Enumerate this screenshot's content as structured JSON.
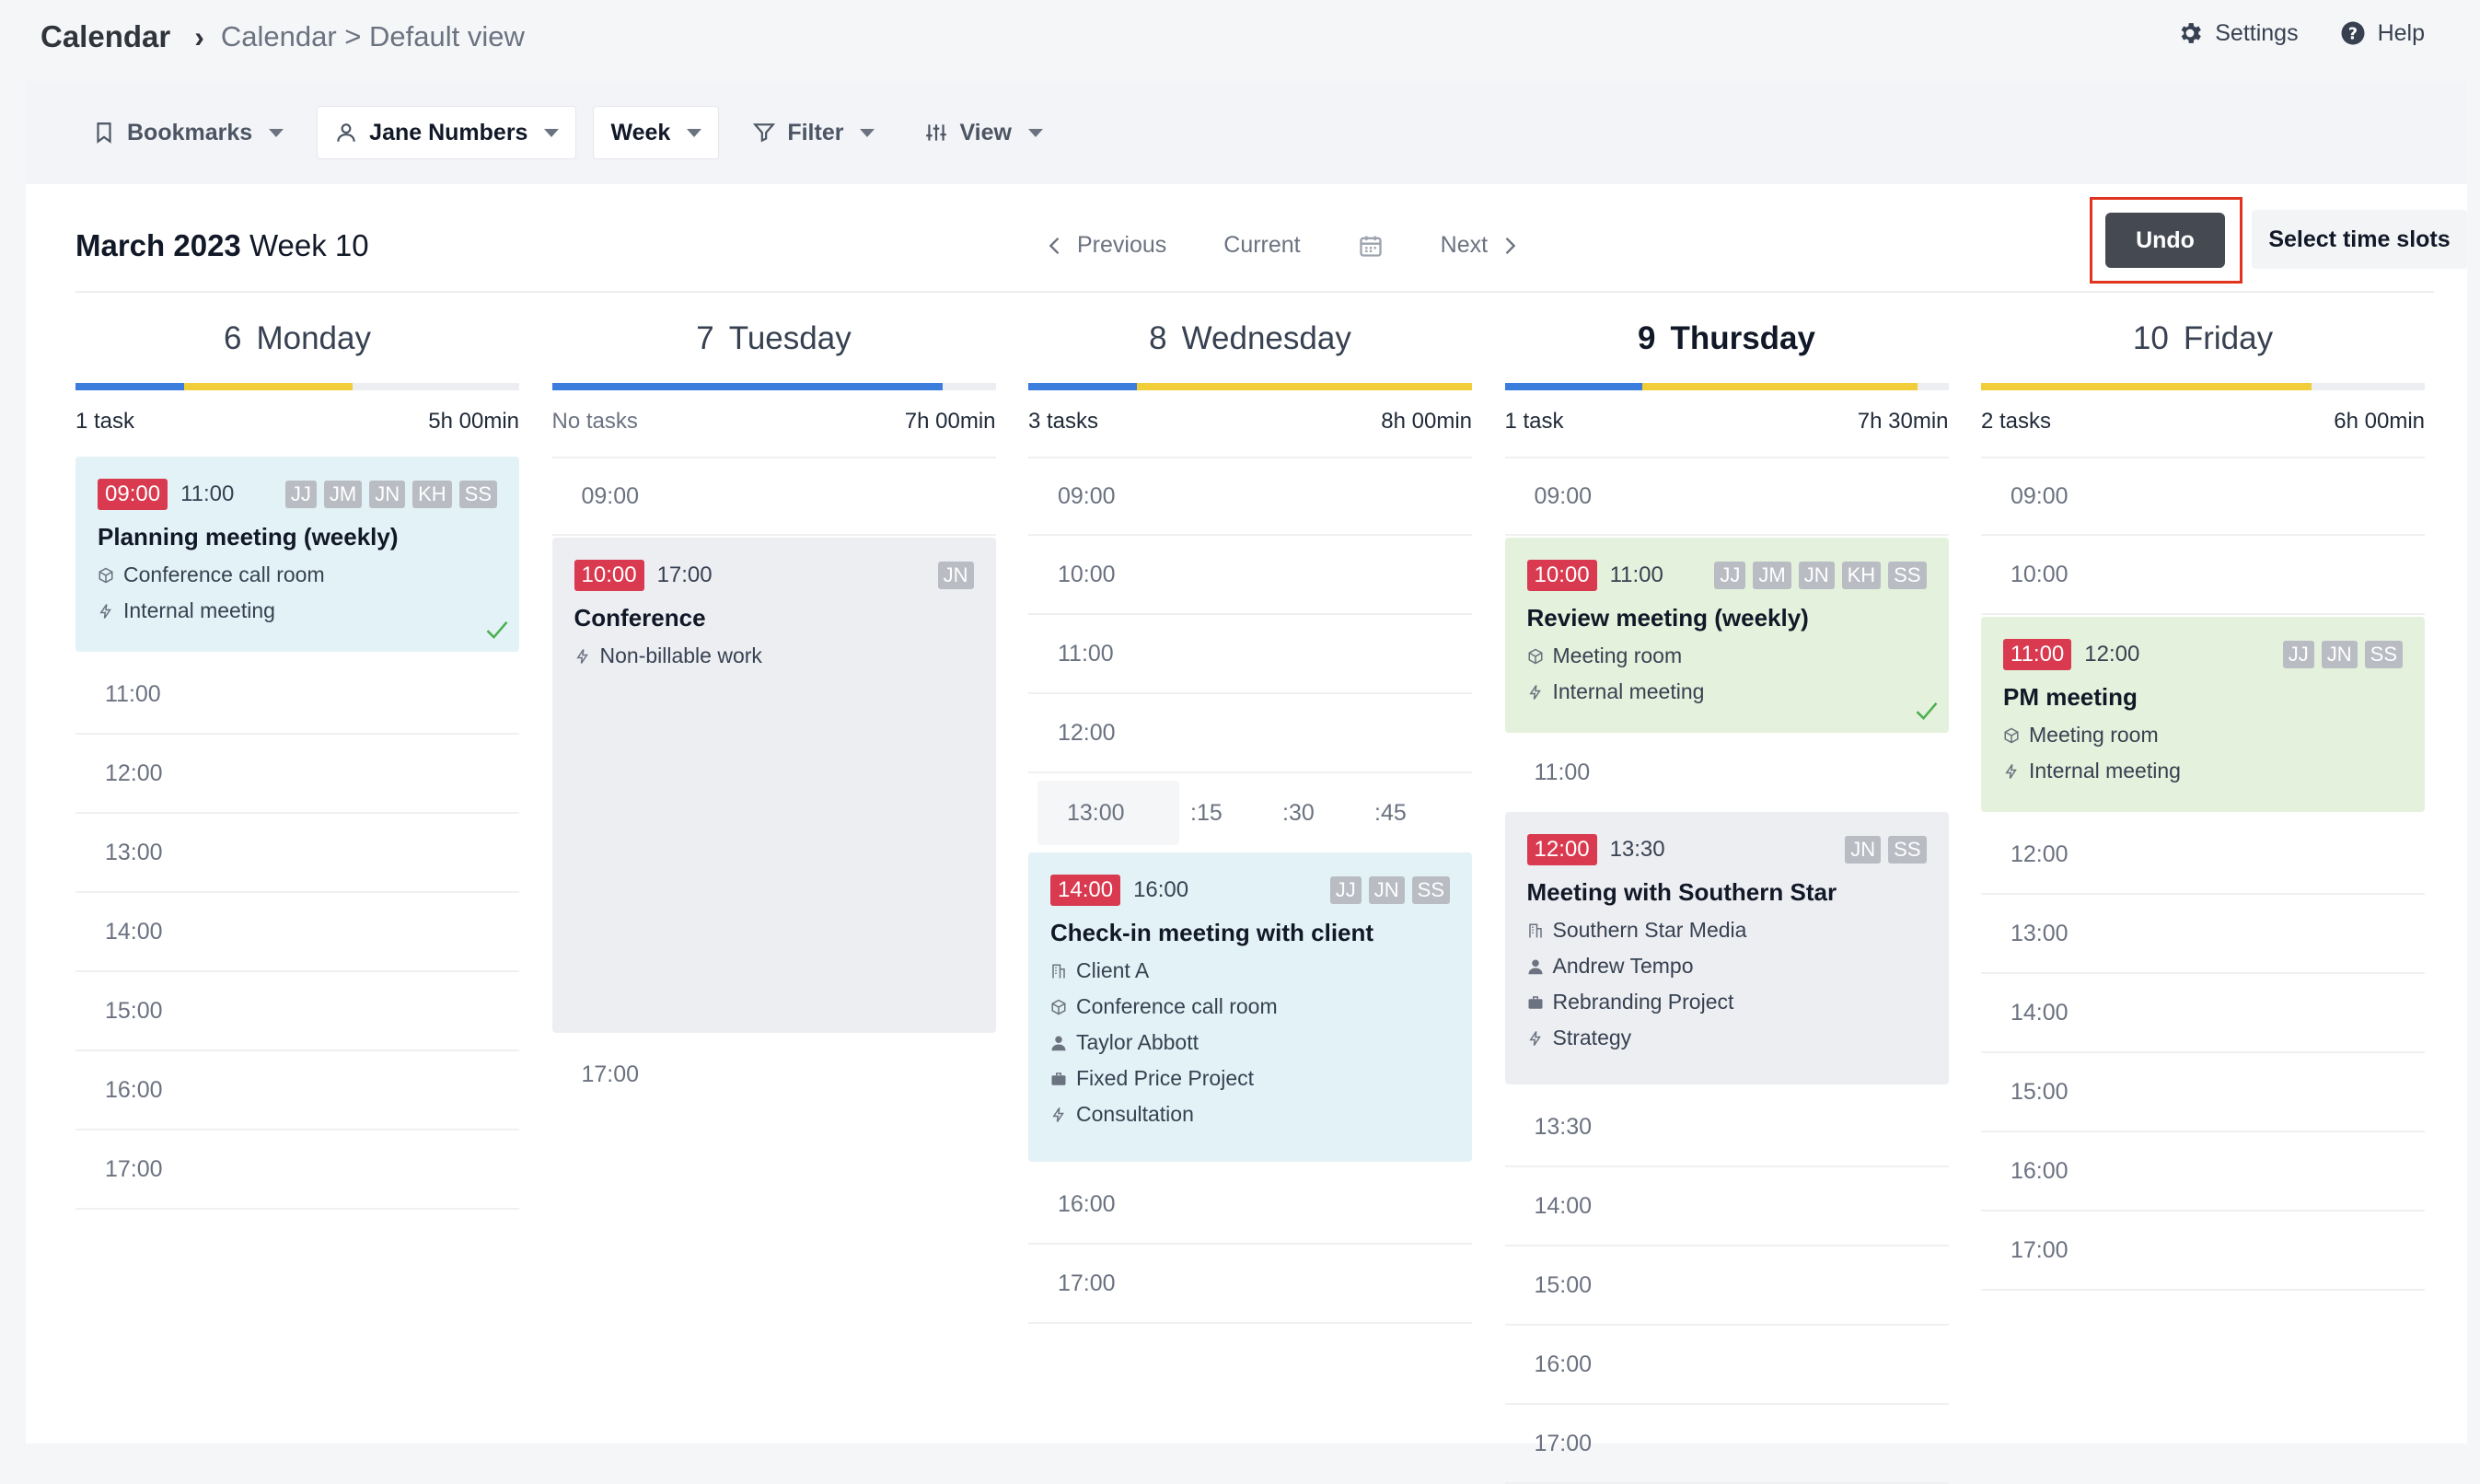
{
  "header": {
    "app_title": "Calendar",
    "breadcrumb": "Calendar > Default view",
    "settings_label": "Settings",
    "help_label": "Help"
  },
  "toolbar": {
    "bookmarks_label": "Bookmarks",
    "user_label": "Jane Numbers",
    "period_label": "Week",
    "filter_label": "Filter",
    "view_label": "View"
  },
  "week": {
    "month": "March 2023",
    "week": "Week 10",
    "previous": "Previous",
    "current": "Current",
    "next": "Next",
    "undo": "Undo",
    "select_slots": "Select time slots"
  },
  "colors": {
    "accent_red": "#d93a4f",
    "bar_blue": "#3b7ddd",
    "bar_yellow": "#f2cd3a",
    "undo_frame": "#e0341f"
  },
  "days": [
    {
      "num": "6",
      "name": "Monday",
      "tasks": "1 task",
      "hours": "5h 00min",
      "bar": [
        {
          "color": "blue",
          "fraction": 0.245
        },
        {
          "color": "yellow",
          "fraction": 0.38
        }
      ],
      "event": {
        "start": "09:00",
        "end": "11:00",
        "initials": [
          "JJ",
          "JM",
          "JN",
          "KH",
          "SS"
        ],
        "title": "Planning meeting (weekly)",
        "lines": [
          "Conference call room",
          "Internal meeting"
        ],
        "done": true
      },
      "slots": [
        "11:00",
        "12:00",
        "13:00",
        "14:00",
        "15:00",
        "16:00",
        "17:00"
      ]
    },
    {
      "num": "7",
      "name": "Tuesday",
      "tasks": "No tasks",
      "hours": "7h 00min",
      "bar": [
        {
          "color": "blue",
          "fraction": 0.88
        }
      ],
      "slots_before": [
        "09:00"
      ],
      "event": {
        "start": "10:00",
        "end": "17:00",
        "initials": [
          "JN"
        ],
        "title": "Conference",
        "lines": [
          "Non-billable work"
        ]
      },
      "slots": [
        "17:00"
      ]
    },
    {
      "num": "8",
      "name": "Wednesday",
      "tasks": "3 tasks",
      "hours": "8h 00min",
      "bar": [
        {
          "color": "blue",
          "fraction": 0.245
        },
        {
          "color": "yellow",
          "fraction": 0.755
        }
      ],
      "slots_before": [
        "09:00",
        "10:00",
        "11:00",
        "12:00"
      ],
      "quarters": [
        "13:00",
        ":15",
        ":30",
        ":45"
      ],
      "event": {
        "start": "14:00",
        "end": "16:00",
        "initials": [
          "JJ",
          "JN",
          "SS"
        ],
        "title": "Check-in meeting with client",
        "lines": [
          "Client A",
          "Conference call room",
          "Taylor Abbott",
          "Fixed Price Project",
          "Consultation"
        ]
      },
      "slots": [
        "16:00",
        "17:00"
      ]
    },
    {
      "num": "9",
      "name": "Thursday",
      "tasks": "1 task",
      "hours": "7h 30min",
      "bar": [
        {
          "color": "blue",
          "fraction": 0.31
        },
        {
          "color": "yellow",
          "fraction": 0.62
        }
      ],
      "slots_before": [
        "09:00"
      ],
      "event": {
        "start": "10:00",
        "end": "11:00",
        "initials": [
          "JJ",
          "JM",
          "JN",
          "KH",
          "SS"
        ],
        "title": "Review meeting (weekly)",
        "lines": [
          "Meeting room",
          "Internal meeting"
        ],
        "done": true
      },
      "slot_mid": "11:00",
      "event2": {
        "start": "12:00",
        "end": "13:30",
        "initials": [
          "JN",
          "SS"
        ],
        "title": "Meeting with Southern Star",
        "lines": [
          "Southern Star Media",
          "Andrew Tempo",
          "Rebranding Project",
          "Strategy"
        ]
      },
      "slots": [
        "13:30",
        "14:00",
        "15:00",
        "16:00",
        "17:00"
      ]
    },
    {
      "num": "10",
      "name": "Friday",
      "tasks": "2 tasks",
      "hours": "6h 00min",
      "bar": [
        {
          "color": "yellow",
          "fraction": 0.745
        }
      ],
      "slots_before": [
        "09:00",
        "10:00"
      ],
      "event": {
        "start": "11:00",
        "end": "12:00",
        "initials": [
          "JJ",
          "JN",
          "SS"
        ],
        "title": "PM meeting",
        "lines": [
          "Meeting room",
          "Internal meeting"
        ]
      },
      "slots": [
        "12:00",
        "13:00",
        "14:00",
        "15:00",
        "16:00",
        "17:00"
      ]
    }
  ]
}
